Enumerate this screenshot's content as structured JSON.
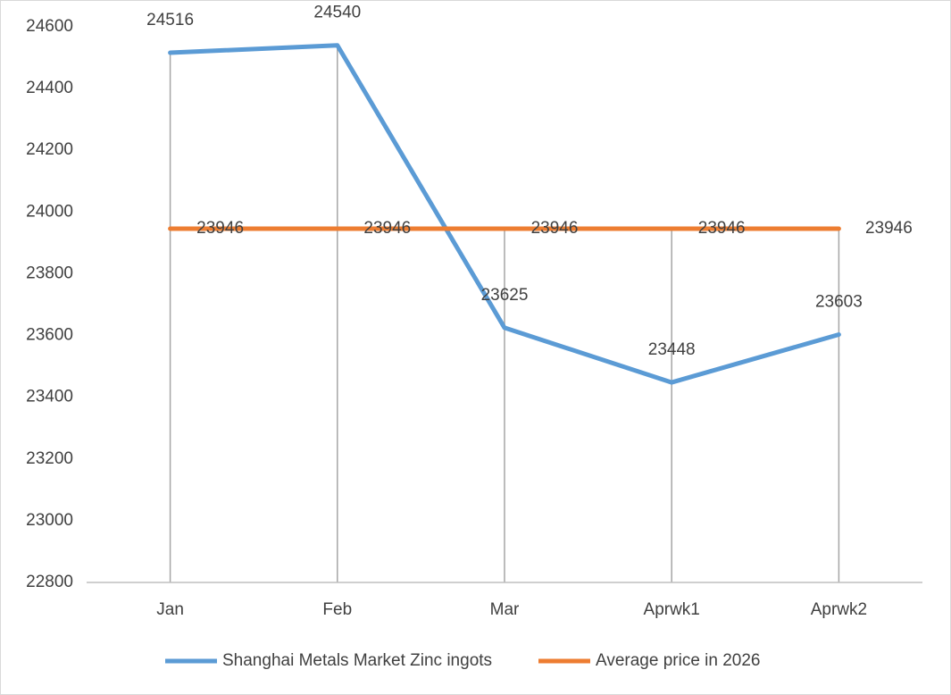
{
  "chart_data": {
    "type": "line",
    "categories": [
      "Jan",
      "Feb",
      "Mar",
      "Aprwk1",
      "Aprwk2"
    ],
    "series": [
      {
        "name": "Shanghai Metals Market Zinc ingots",
        "color": "#5b9bd5",
        "values": [
          24516,
          24540,
          23625,
          23448,
          23603
        ]
      },
      {
        "name": "Average price in 2026",
        "color": "#ed7d31",
        "values": [
          23946,
          23946,
          23946,
          23946,
          23946
        ]
      }
    ],
    "ylim": [
      22800,
      24600
    ],
    "yticks": [
      22800,
      23000,
      23200,
      23400,
      23600,
      23800,
      24000,
      24200,
      24400,
      24600
    ],
    "grid": false,
    "drop_lines": true,
    "legend": "bottom"
  }
}
